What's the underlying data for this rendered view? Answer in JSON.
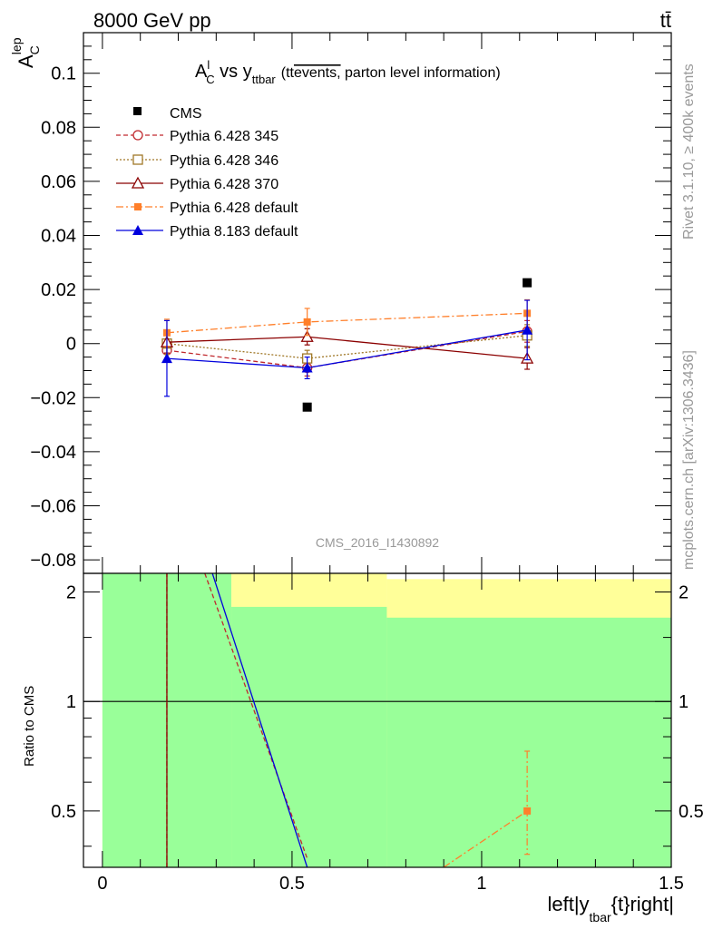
{
  "header": {
    "left": "8000 GeV pp",
    "right": "tt̄"
  },
  "side_labels": {
    "rivet": "Rivet 3.1.10, ≥ 400k events",
    "mcplots": "mcplots.cern.ch [arXiv:1306.3436]"
  },
  "colors": {
    "cms": "#000000",
    "p345": "#c0282d",
    "p346": "#a07828",
    "p370": "#8b0000",
    "p6def": "#ff7f2a",
    "p8def": "#0000dd",
    "band_green": "#99ff99",
    "band_yellow": "#ffff99"
  },
  "chart_data": [
    {
      "type": "line",
      "title_main": "A",
      "title_sup": "l",
      "title_sub": "C",
      "title_vs": " vs y",
      "title_sub2": "ttbar",
      "title_paren": "(tt",
      "title_over": "events,",
      "title_rest": " parton level information)",
      "ylabel_main": "A",
      "ylabel_sup": "lep",
      "ylabel_sub": "C",
      "watermark": "CMS_2016_I1430892",
      "xlim": [
        -0.05,
        1.5
      ],
      "ylim": [
        -0.085,
        0.115
      ],
      "ytick_labels": [
        "−0.08",
        "−0.06",
        "−0.04",
        "−0.02",
        "0",
        "0.02",
        "0.04",
        "0.06",
        "0.08",
        "0.1"
      ],
      "ytick_values": [
        -0.08,
        -0.06,
        -0.04,
        -0.02,
        0,
        0.02,
        0.04,
        0.06,
        0.08,
        0.1
      ],
      "series": [
        {
          "key": "cms",
          "name": "CMS",
          "x": [
            0.17,
            0.54,
            1.12
          ],
          "values": [
            0.0,
            -0.0235,
            0.0225
          ],
          "err": [
            0,
            0,
            0
          ],
          "style": "data"
        },
        {
          "key": "p345",
          "name": "Pythia 6.428 345",
          "x": [
            0.17,
            0.54,
            1.12
          ],
          "values": [
            -0.0025,
            -0.009,
            0.0045
          ],
          "err": [
            0.004,
            0.003,
            0.004
          ],
          "marker": "circle",
          "dash": "5,3"
        },
        {
          "key": "p346",
          "name": "Pythia 6.428 346",
          "x": [
            0.17,
            0.54,
            1.12
          ],
          "values": [
            0.0,
            -0.0055,
            0.003
          ],
          "err": [
            0.004,
            0.003,
            0.004
          ],
          "marker": "square-open",
          "dash": "2,2"
        },
        {
          "key": "p370",
          "name": "Pythia 6.428 370",
          "x": [
            0.17,
            0.54,
            1.12
          ],
          "values": [
            0.0005,
            0.0025,
            -0.0055
          ],
          "err": [
            0.004,
            0.003,
            0.004
          ],
          "marker": "triangle-open",
          "dash": ""
        },
        {
          "key": "p6def",
          "name": "Pythia 6.428 default",
          "x": [
            0.17,
            0.54,
            1.12
          ],
          "values": [
            0.004,
            0.008,
            0.0112
          ],
          "err": [
            0.005,
            0.005,
            0.005
          ],
          "marker": "square-filled",
          "dash": "8,3,2,3"
        },
        {
          "key": "p8def",
          "name": "Pythia 8.183 default",
          "x": [
            0.17,
            0.54,
            1.12
          ],
          "values": [
            -0.0055,
            -0.009,
            0.005
          ],
          "err": [
            0.014,
            0.004,
            0.011
          ],
          "marker": "triangle-filled",
          "dash": ""
        }
      ]
    },
    {
      "type": "line",
      "ylabel": "Ratio to CMS",
      "xlabel_main": "left|y",
      "xlabel_sub": "tbar",
      "xlabel_rest": "{t}right|",
      "xlim": [
        -0.05,
        1.5
      ],
      "ylim": [
        0.35,
        2.25
      ],
      "xtick_labels": [
        "0",
        "0.5",
        "1",
        "1.5"
      ],
      "xtick_values": [
        0,
        0.5,
        1,
        1.5
      ],
      "ytick_labels": [
        "0.5",
        "1",
        "2"
      ],
      "ytick_values": [
        0.5,
        1,
        2
      ],
      "bands": [
        {
          "x0": 0.0,
          "x1": 0.34,
          "green_lo": 0.35,
          "green_hi": 2.25,
          "yellow_lo": 0.35,
          "yellow_hi": 2.25
        },
        {
          "x0": 0.34,
          "x1": 0.75,
          "green_lo": 0.35,
          "green_hi": 1.82,
          "yellow_lo": 0.35,
          "yellow_hi": 2.25
        },
        {
          "x0": 0.75,
          "x1": 1.5,
          "green_lo": 0.35,
          "green_hi": 1.7,
          "yellow_lo": 0.35,
          "yellow_hi": 2.17
        }
      ],
      "ratio_lines": [
        {
          "key": "p345",
          "points": [
            [
              0.17,
              0.35
            ],
            [
              0.17,
              2.25
            ]
          ],
          "dash": "5,3"
        },
        {
          "key": "p370",
          "points": [
            [
              0.17,
              0.35
            ],
            [
              0.17,
              2.25
            ]
          ],
          "dash": ""
        },
        {
          "key": "p345",
          "points": [
            [
              0.27,
              2.25
            ],
            [
              0.54,
              0.37
            ]
          ],
          "dash": "5,3"
        },
        {
          "key": "p8def",
          "points": [
            [
              0.29,
              2.25
            ],
            [
              0.54,
              0.35
            ]
          ],
          "dash": ""
        },
        {
          "key": "p6def",
          "points": [
            [
              0.9,
              0.35
            ],
            [
              1.12,
              0.5
            ]
          ],
          "dash": "8,3,2,3"
        }
      ],
      "ratio_points": [
        {
          "key": "p6def",
          "x": 1.12,
          "y": 0.5,
          "err_lo": 0.38,
          "err_hi": 0.73
        }
      ]
    }
  ]
}
